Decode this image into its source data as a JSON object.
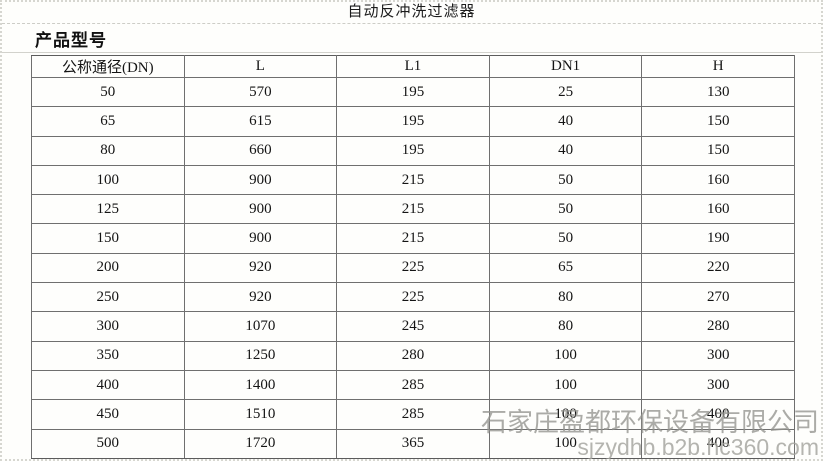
{
  "page": {
    "title": "自动反冲洗过滤器",
    "section_title": "产品型号"
  },
  "table": {
    "columns": [
      "公称通径(DN)",
      "L",
      "L1",
      "DN1",
      "H"
    ],
    "rows": [
      [
        "50",
        "570",
        "195",
        "25",
        "130"
      ],
      [
        "65",
        "615",
        "195",
        "40",
        "150"
      ],
      [
        "80",
        "660",
        "195",
        "40",
        "150"
      ],
      [
        "100",
        "900",
        "215",
        "50",
        "160"
      ],
      [
        "125",
        "900",
        "215",
        "50",
        "160"
      ],
      [
        "150",
        "900",
        "215",
        "50",
        "190"
      ],
      [
        "200",
        "920",
        "225",
        "65",
        "220"
      ],
      [
        "250",
        "920",
        "225",
        "80",
        "270"
      ],
      [
        "300",
        "1070",
        "245",
        "80",
        "280"
      ],
      [
        "350",
        "1250",
        "280",
        "100",
        "300"
      ],
      [
        "400",
        "1400",
        "285",
        "100",
        "300"
      ],
      [
        "450",
        "1510",
        "285",
        "100",
        "400"
      ],
      [
        "500",
        "1720",
        "365",
        "100",
        "400"
      ]
    ]
  },
  "watermark": {
    "company": "石家庄盈都环保设备有限公司",
    "url": "sjzydhb.b2b.hc360.com"
  },
  "colors": {
    "table_border": "#6f6f6f",
    "page_border_dotted": "#d6d6d0",
    "divider_dashed": "#cdcdc7",
    "watermark_gray": "#94938e",
    "text": "#141414"
  }
}
